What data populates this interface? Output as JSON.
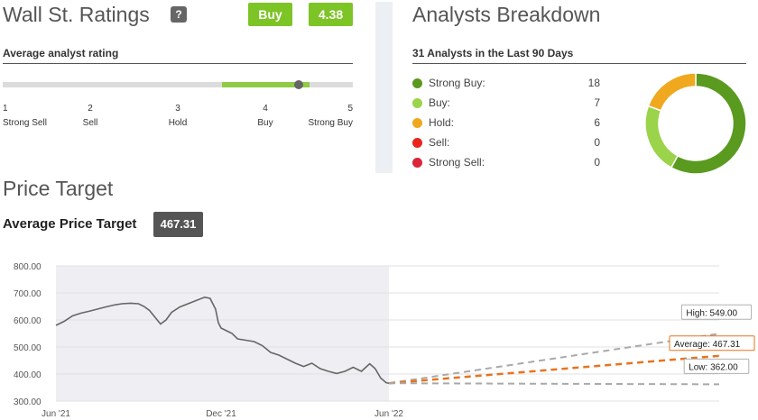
{
  "ratings": {
    "title": "Wall St. Ratings",
    "help_label": "?",
    "consensus_label": "Buy",
    "score": "4.38",
    "score_value": 4.38,
    "green_range": [
      3.5,
      4.5
    ],
    "subtitle": "Average analyst rating",
    "scale": [
      {
        "num": "1",
        "label": "Strong Sell"
      },
      {
        "num": "2",
        "label": "Sell"
      },
      {
        "num": "3",
        "label": "Hold"
      },
      {
        "num": "4",
        "label": "Buy"
      },
      {
        "num": "5",
        "label": "Strong Buy"
      }
    ]
  },
  "breakdown": {
    "title": "Analysts Breakdown",
    "subtitle": "31 Analysts in the Last 90 Days",
    "items": [
      {
        "label": "Strong Buy:",
        "value": "18",
        "count": 18,
        "color": "#5a9a1f"
      },
      {
        "label": "Buy:",
        "value": "7",
        "count": 7,
        "color": "#9bd34a"
      },
      {
        "label": "Hold:",
        "value": "6",
        "count": 6,
        "color": "#f0a81f"
      },
      {
        "label": "Sell:",
        "value": "0",
        "count": 0,
        "color": "#e8261b"
      },
      {
        "label": "Strong Sell:",
        "value": "0",
        "count": 0,
        "color": "#d9263b"
      }
    ]
  },
  "price_target": {
    "title": "Price Target",
    "average_label": "Average Price Target",
    "average_value": "467.31"
  },
  "chart_data": {
    "type": "line",
    "ylim": [
      300,
      800
    ],
    "y_ticks": [
      "800.00",
      "700.00",
      "600.00",
      "500.00",
      "400.00",
      "300.00"
    ],
    "x_ticks": [
      "Jun '21",
      "Dec '21",
      "Jun '22"
    ],
    "history": [
      [
        0,
        580
      ],
      [
        0.3,
        595
      ],
      [
        0.6,
        615
      ],
      [
        0.9,
        625
      ],
      [
        1.2,
        632
      ],
      [
        1.5,
        640
      ],
      [
        1.8,
        648
      ],
      [
        2.1,
        655
      ],
      [
        2.4,
        660
      ],
      [
        2.7,
        662
      ],
      [
        3.0,
        660
      ],
      [
        3.2,
        650
      ],
      [
        3.4,
        635
      ],
      [
        3.6,
        610
      ],
      [
        3.8,
        585
      ],
      [
        4.0,
        600
      ],
      [
        4.2,
        628
      ],
      [
        4.5,
        648
      ],
      [
        4.8,
        660
      ],
      [
        5.1,
        672
      ],
      [
        5.4,
        684
      ],
      [
        5.6,
        680
      ],
      [
        5.8,
        640
      ],
      [
        5.9,
        590
      ],
      [
        6.0,
        570
      ],
      [
        6.2,
        560
      ],
      [
        6.4,
        550
      ],
      [
        6.6,
        530
      ],
      [
        6.9,
        525
      ],
      [
        7.2,
        520
      ],
      [
        7.5,
        505
      ],
      [
        7.8,
        480
      ],
      [
        8.1,
        470
      ],
      [
        8.4,
        455
      ],
      [
        8.7,
        440
      ],
      [
        9.0,
        428
      ],
      [
        9.3,
        440
      ],
      [
        9.6,
        420
      ],
      [
        9.9,
        410
      ],
      [
        10.2,
        402
      ],
      [
        10.5,
        410
      ],
      [
        10.8,
        425
      ],
      [
        11.1,
        410
      ],
      [
        11.4,
        438
      ],
      [
        11.6,
        420
      ],
      [
        11.8,
        385
      ],
      [
        12.0,
        368
      ],
      [
        12.1,
        366
      ]
    ],
    "forecast_start": [
      12.1,
      366
    ],
    "forecast_end_x": 24.1,
    "high": {
      "label": "High: 549.00",
      "value": 549.0,
      "color": "#a9a9a9"
    },
    "average": {
      "label": "Average: 467.31",
      "value": 467.31,
      "color": "#e8731e"
    },
    "low": {
      "label": "Low: 362.00",
      "value": 362.0,
      "color": "#a9a9a9"
    },
    "line_color": "#666666",
    "shaded_region_color": "#efeff3"
  }
}
